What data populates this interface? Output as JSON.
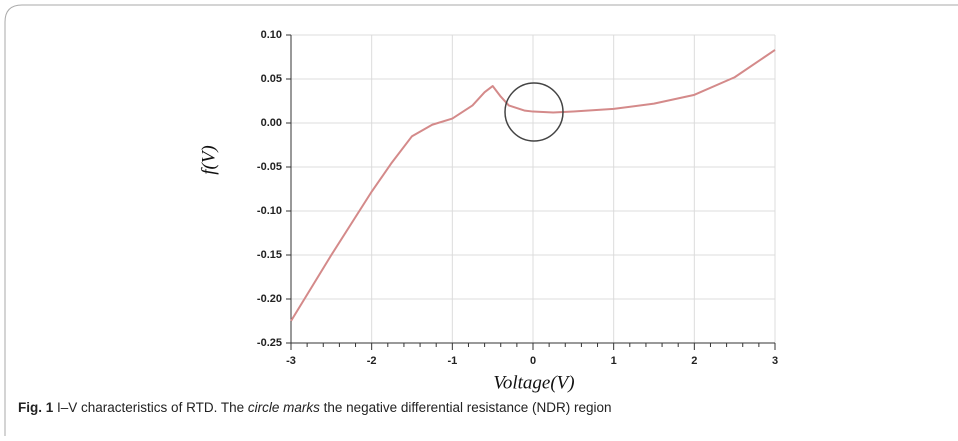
{
  "chart_data": {
    "type": "line",
    "xlabel": "Voltage(V)",
    "ylabel": "f(V)",
    "x": [
      -3,
      -2.5,
      -2,
      -1.75,
      -1.5,
      -1.25,
      -1,
      -0.75,
      -0.6,
      -0.5,
      -0.4,
      -0.3,
      -0.1,
      0,
      0.25,
      0.5,
      1,
      1.5,
      2,
      2.5,
      3
    ],
    "series": [
      {
        "color": "#d48a8a",
        "values": [
          -0.225,
          -0.15,
          -0.078,
          -0.045,
          -0.015,
          -0.002,
          0.005,
          0.02,
          0.035,
          0.042,
          0.03,
          0.02,
          0.014,
          0.013,
          0.012,
          0.013,
          0.016,
          0.022,
          0.032,
          0.052,
          0.083
        ]
      }
    ],
    "xlim": [
      -3,
      3
    ],
    "xticks": [
      -3,
      -2,
      -1,
      0,
      1,
      2,
      3
    ],
    "xminorticks": [
      -2.8,
      -2.6,
      -2.4,
      -2.2,
      -1.8,
      -1.6,
      -1.4,
      -1.2,
      -0.8,
      -0.6,
      -0.4,
      -0.2,
      0.2,
      0.4,
      0.6,
      0.8,
      1.2,
      1.4,
      1.6,
      1.8,
      2.2,
      2.4,
      2.6,
      2.8
    ],
    "ylim": [
      -0.25,
      0.1
    ],
    "yticks": [
      {
        "value": -0.25,
        "label": "-0.25"
      },
      {
        "value": -0.2,
        "label": "-0.20"
      },
      {
        "value": -0.15,
        "label": "-0.15"
      },
      {
        "value": -0.1,
        "label": "-0.10"
      },
      {
        "value": -0.05,
        "label": "-0.05"
      },
      {
        "value": 0,
        "label": "0.00"
      },
      {
        "value": 0.05,
        "label": "0.05"
      },
      {
        "value": 0.1,
        "label": "0.10"
      }
    ],
    "grid": true
  },
  "caption": {
    "label": "Fig. 1",
    "text1": " I–V characteristics of RTD. The ",
    "emph": "circle marks",
    "text2": " the negative differential resistance (NDR) region"
  }
}
